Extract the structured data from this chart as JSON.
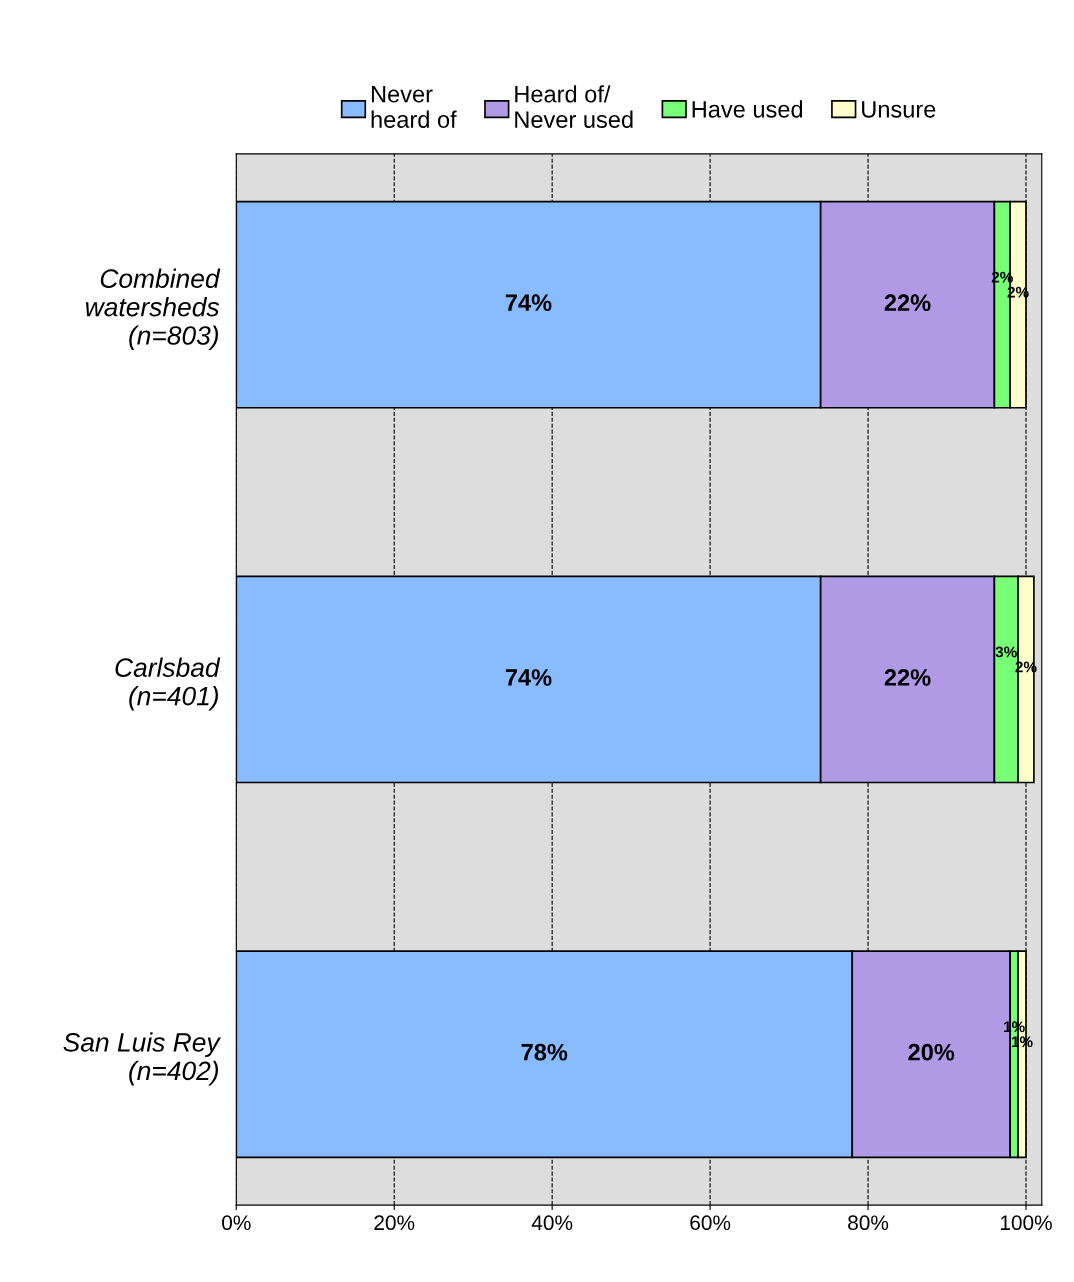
{
  "chart_data": {
    "type": "bar",
    "orientation": "horizontal",
    "stacked": true,
    "categories": [
      "Combined\nwatersheds\n(n=803)",
      "Carlsbad\n(n=401)",
      "San Luis Rey\n(n=402)"
    ],
    "series": [
      {
        "name": "Never\nheard of",
        "color": "#88bbff",
        "values": [
          74,
          74,
          78
        ],
        "value_labels": [
          "74%",
          "74%",
          "78%"
        ]
      },
      {
        "name": "Heard of/\nNever used",
        "color": "#b09ae6",
        "values": [
          22,
          22,
          20
        ],
        "value_labels": [
          "22%",
          "22%",
          "20%"
        ]
      },
      {
        "name": "Have used",
        "color": "#77ff77",
        "values": [
          2,
          3,
          1
        ],
        "value_labels": [
          "2%",
          "3%",
          "1%"
        ]
      },
      {
        "name": "Unsure",
        "color": "#ffffcc",
        "values": [
          2,
          2,
          1
        ],
        "value_labels": [
          "2%",
          "2%",
          "1%"
        ]
      }
    ],
    "xlim": [
      0,
      102
    ],
    "xticks": [
      {
        "value": 0,
        "label": "0%"
      },
      {
        "value": 20,
        "label": "20%"
      },
      {
        "value": 40,
        "label": "40%"
      },
      {
        "value": 60,
        "label": "60%"
      },
      {
        "value": 80,
        "label": "80%"
      },
      {
        "value": 100,
        "label": "100%"
      }
    ],
    "grid": "x",
    "legend": "top"
  }
}
